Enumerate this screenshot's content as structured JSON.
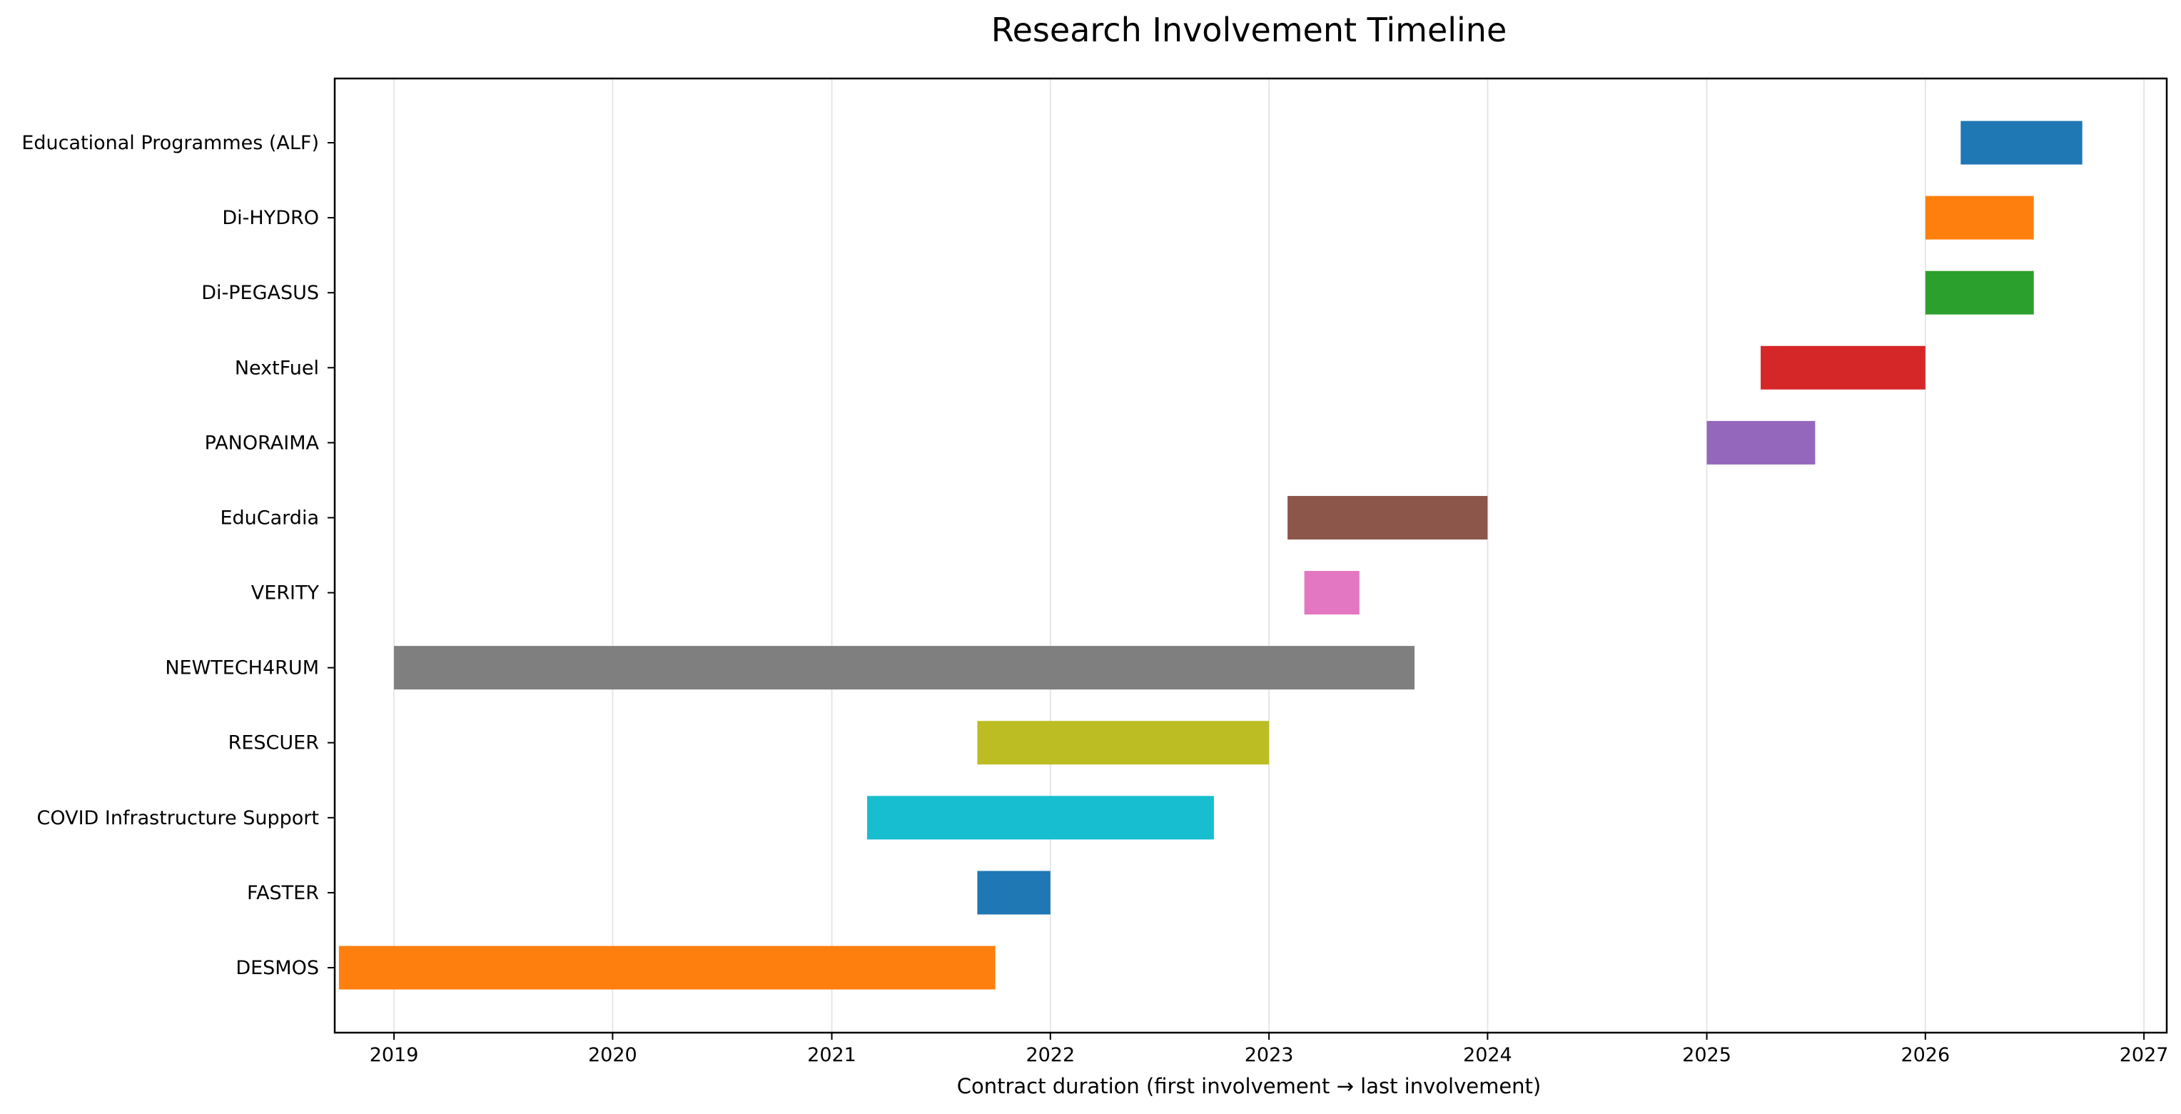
{
  "chart_data": {
    "type": "bar",
    "orientation": "horizontal-gantt",
    "title": "Research Involvement Timeline",
    "xlabel": "Contract duration (first involvement → last involvement)",
    "ylabel": "",
    "x_axis": "date",
    "xlim": [
      "2018-09-24",
      "2027-02-08"
    ],
    "x_ticks": [
      "2019",
      "2020",
      "2021",
      "2022",
      "2023",
      "2024",
      "2025",
      "2026",
      "2027"
    ],
    "grid": "vertical",
    "legend": "none",
    "bars": [
      {
        "label": "Educational Programmes (ALF)",
        "start": "2026-03-01",
        "end": "2026-09-20",
        "color": "#1f77b4"
      },
      {
        "label": "Di-HYDRO",
        "start": "2026-01-01",
        "end": "2026-07-01",
        "color": "#ff7f0e"
      },
      {
        "label": "Di-PEGASUS",
        "start": "2026-01-01",
        "end": "2026-07-01",
        "color": "#2ca02c"
      },
      {
        "label": "NextFuel",
        "start": "2025-04-01",
        "end": "2026-01-01",
        "color": "#d62728"
      },
      {
        "label": "PANORAIMA",
        "start": "2025-01-01",
        "end": "2025-07-01",
        "color": "#9467bd"
      },
      {
        "label": "EduCardia",
        "start": "2023-02-01",
        "end": "2024-01-01",
        "color": "#8c564b"
      },
      {
        "label": "VERITY",
        "start": "2023-03-01",
        "end": "2023-06-01",
        "color": "#e377c2"
      },
      {
        "label": "NEWTECH4RUM",
        "start": "2019-01-01",
        "end": "2023-09-01",
        "color": "#7f7f7f"
      },
      {
        "label": "RESCUER",
        "start": "2021-09-01",
        "end": "2023-01-01",
        "color": "#bcbd22"
      },
      {
        "label": "COVID Infrastructure Support",
        "start": "2021-03-01",
        "end": "2022-10-01",
        "color": "#17becf"
      },
      {
        "label": "FASTER",
        "start": "2021-09-01",
        "end": "2022-01-01",
        "color": "#1f77b4"
      },
      {
        "label": "DESMOS",
        "start": "2018-10-01",
        "end": "2021-10-01",
        "color": "#ff7f0e"
      }
    ]
  }
}
